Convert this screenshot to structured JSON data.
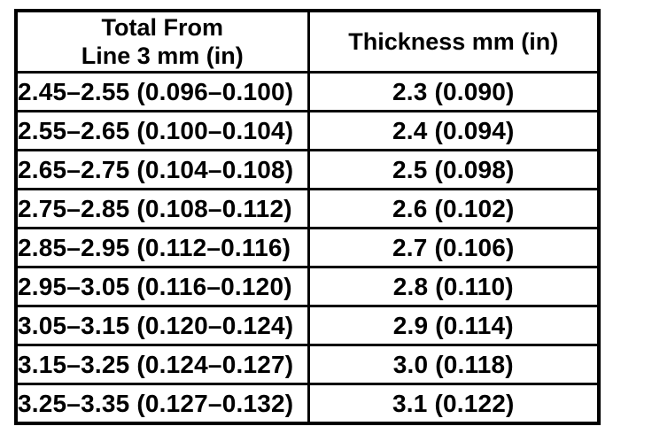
{
  "page": {
    "background": "#ffffff",
    "text_color": "#000000",
    "border_color": "#000000"
  },
  "table": {
    "header": {
      "col1_line1": "Total From",
      "col1_line2": "Line 3 mm (in)",
      "col2": "Thickness mm (in)"
    },
    "rows": [
      {
        "total_from_line3": "2.45–2.55 (0.096–0.100)",
        "thickness": "2.3 (0.090)"
      },
      {
        "total_from_line3": "2.55–2.65 (0.100–0.104)",
        "thickness": "2.4 (0.094)"
      },
      {
        "total_from_line3": "2.65–2.75 (0.104–0.108)",
        "thickness": "2.5 (0.098)"
      },
      {
        "total_from_line3": "2.75–2.85 (0.108–0.112)",
        "thickness": "2.6 (0.102)"
      },
      {
        "total_from_line3": "2.85–2.95 (0.112–0.116)",
        "thickness": "2.7 (0.106)"
      },
      {
        "total_from_line3": "2.95–3.05 (0.116–0.120)",
        "thickness": "2.8 (0.110)"
      },
      {
        "total_from_line3": "3.05–3.15 (0.120–0.124)",
        "thickness": "2.9 (0.114)"
      },
      {
        "total_from_line3": "3.15–3.25 (0.124–0.127)",
        "thickness": "3.0 (0.118)"
      },
      {
        "total_from_line3": "3.25–3.35 (0.127–0.132)",
        "thickness": "3.1 (0.122)"
      }
    ]
  }
}
